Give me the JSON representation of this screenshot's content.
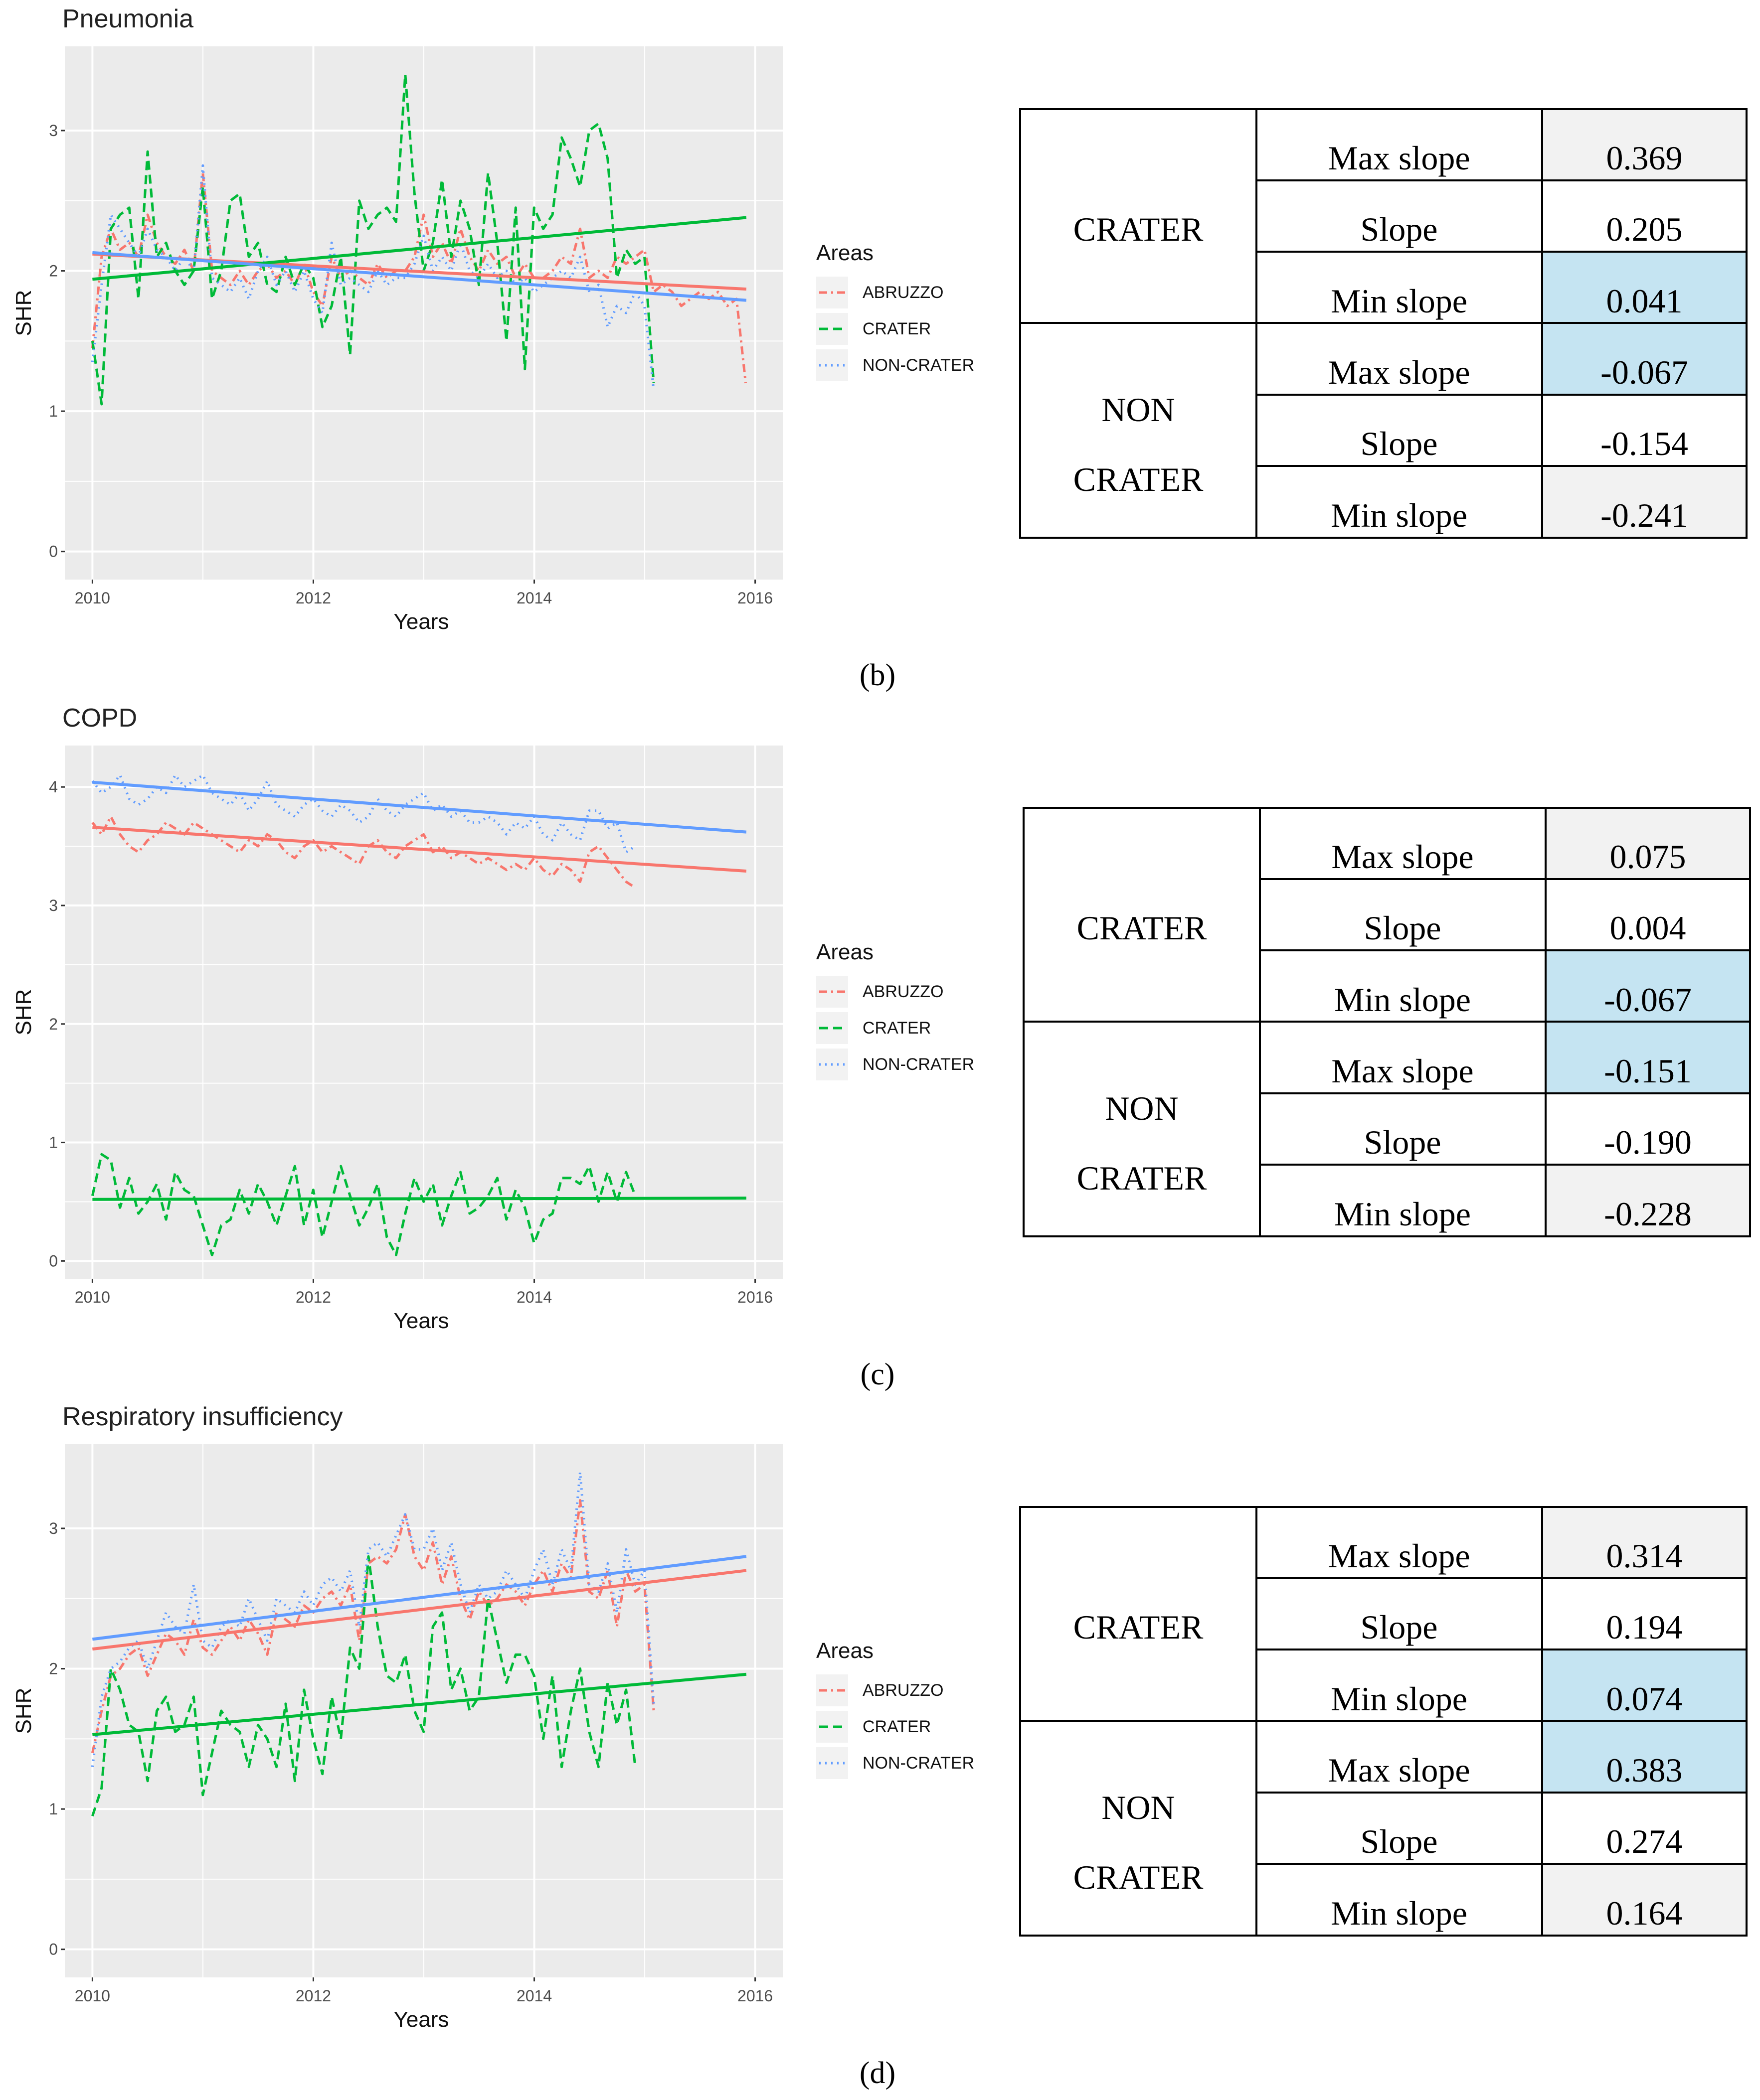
{
  "colors": {
    "panel_bg": "#ebebeb",
    "grid": "#ffffff",
    "abruzzo": "#f8766d",
    "crater": "#00ba38",
    "non_crater": "#619cff",
    "cell_gray": "#f2f2f2",
    "cell_blue": "#c5e4f2"
  },
  "legend": {
    "title": "Areas",
    "entries": [
      {
        "label": "ABRUZZO",
        "color_key": "abruzzo",
        "style": "dashdot"
      },
      {
        "label": "CRATER",
        "color_key": "crater",
        "style": "dashed"
      },
      {
        "label": "NON-CRATER",
        "color_key": "non_crater",
        "style": "dotted"
      }
    ]
  },
  "panels": [
    {
      "caption": "(b)",
      "table": {
        "group1": "CRATER",
        "group2_line1": "NON",
        "group2_line2": "CRATER",
        "rows": [
          {
            "label": "Max slope",
            "value": "0.369",
            "shade": "gray"
          },
          {
            "label": "Slope",
            "value": "0.205",
            "shade": "none"
          },
          {
            "label": "Min slope",
            "value": "0.041",
            "shade": "blue"
          },
          {
            "label": "Max slope",
            "value": "-0.067",
            "shade": "blue"
          },
          {
            "label": "Slope",
            "value": "-0.154",
            "shade": "none"
          },
          {
            "label": "Min slope",
            "value": "-0.241",
            "shade": "gray"
          }
        ]
      }
    },
    {
      "caption": "(c)",
      "table": {
        "group1": "CRATER",
        "group2_line1": "NON",
        "group2_line2": "CRATER",
        "rows": [
          {
            "label": "Max slope",
            "value": "0.075",
            "shade": "gray"
          },
          {
            "label": "Slope",
            "value": "0.004",
            "shade": "none"
          },
          {
            "label": "Min slope",
            "value": "-0.067",
            "shade": "blue"
          },
          {
            "label": "Max slope",
            "value": "-0.151",
            "shade": "blue"
          },
          {
            "label": "Slope",
            "value": "-0.190",
            "shade": "none"
          },
          {
            "label": "Min slope",
            "value": "-0.228",
            "shade": "gray"
          }
        ]
      }
    },
    {
      "caption": "(d)",
      "table": {
        "group1": "CRATER",
        "group2_line1": "NON",
        "group2_line2": "CRATER",
        "rows": [
          {
            "label": "Max slope",
            "value": "0.314",
            "shade": "gray"
          },
          {
            "label": "Slope",
            "value": "0.194",
            "shade": "none"
          },
          {
            "label": "Min slope",
            "value": "0.074",
            "shade": "blue"
          },
          {
            "label": "Max slope",
            "value": "0.383",
            "shade": "blue"
          },
          {
            "label": "Slope",
            "value": "0.274",
            "shade": "none"
          },
          {
            "label": "Min slope",
            "value": "0.164",
            "shade": "gray"
          }
        ]
      }
    }
  ],
  "chart_data": [
    {
      "type": "line",
      "title": "Pneumonia",
      "xlabel": "Years",
      "ylabel": "SHR",
      "xlim": [
        2009.75,
        2016.25
      ],
      "ylim": [
        -0.2,
        3.6
      ],
      "xticks": [
        2010,
        2012,
        2014,
        2016
      ],
      "yticks": [
        0,
        1,
        2,
        3
      ],
      "x_start": 2010,
      "x_step": 0.0833,
      "grid": true,
      "series": [
        {
          "name": "ABRUZZO",
          "color_key": "abruzzo",
          "style": "dashdot",
          "values": [
            1.45,
            2.1,
            2.3,
            2.15,
            2.2,
            2.1,
            2.4,
            2.2,
            2.1,
            2.05,
            2.15,
            2.0,
            2.7,
            2.0,
            1.95,
            1.9,
            2.0,
            1.9,
            2.0,
            2.05,
            1.95,
            2.0,
            1.9,
            2.05,
            1.85,
            1.75,
            2.1,
            1.95,
            2.0,
            1.95,
            1.9,
            2.05,
            1.95,
            2.0,
            2.0,
            2.1,
            2.4,
            2.1,
            2.2,
            2.05,
            2.3,
            2.1,
            2.0,
            2.15,
            2.05,
            2.1,
            1.95,
            2.05,
            1.95,
            1.95,
            2.0,
            2.1,
            2.05,
            2.3,
            1.95,
            2.0,
            1.95,
            2.1,
            2.05,
            2.1,
            2.15,
            1.85,
            1.9,
            1.85,
            1.75,
            1.8,
            1.85,
            1.8,
            1.85,
            1.75,
            1.8,
            1.2
          ]
        },
        {
          "name": "CRATER",
          "color_key": "crater",
          "style": "dashed",
          "values": [
            1.5,
            1.05,
            2.3,
            2.4,
            2.45,
            1.8,
            2.85,
            2.1,
            2.2,
            2.0,
            1.9,
            2.0,
            2.6,
            1.8,
            2.0,
            2.5,
            2.55,
            2.1,
            2.2,
            1.9,
            1.85,
            2.1,
            1.9,
            2.05,
            1.95,
            1.6,
            1.75,
            2.1,
            1.4,
            2.5,
            2.3,
            2.4,
            2.45,
            2.35,
            3.4,
            2.55,
            2.0,
            2.2,
            2.65,
            2.1,
            2.5,
            2.3,
            1.9,
            2.7,
            2.2,
            1.5,
            2.45,
            1.3,
            2.45,
            2.3,
            2.4,
            2.95,
            2.8,
            2.6,
            3.0,
            3.05,
            2.8,
            1.95,
            2.15,
            2.05,
            2.1,
            1.2
          ]
        },
        {
          "name": "NON-CRATER",
          "color_key": "non_crater",
          "style": "dotted",
          "values": [
            1.35,
            1.9,
            2.4,
            2.3,
            2.2,
            2.1,
            2.3,
            2.15,
            2.1,
            2.0,
            2.1,
            2.0,
            2.75,
            1.95,
            1.9,
            1.85,
            1.95,
            1.8,
            2.0,
            2.1,
            1.9,
            2.0,
            1.85,
            2.0,
            1.8,
            1.7,
            2.2,
            1.9,
            1.95,
            1.9,
            1.85,
            2.0,
            1.9,
            1.95,
            1.95,
            2.05,
            2.25,
            2.0,
            2.1,
            2.0,
            2.2,
            2.0,
            1.95,
            2.05,
            1.95,
            2.0,
            1.9,
            1.95,
            1.85,
            1.9,
            1.95,
            2.0,
            1.95,
            2.1,
            1.85,
            1.9,
            1.6,
            1.75,
            1.7,
            1.85,
            1.75,
            1.15
          ]
        }
      ],
      "trends": [
        {
          "name": "ABRUZZO",
          "color_key": "abruzzo",
          "x": [
            2010,
            2015.92
          ],
          "y": [
            2.12,
            1.87
          ]
        },
        {
          "name": "CRATER",
          "color_key": "crater",
          "x": [
            2010,
            2015.92
          ],
          "y": [
            1.94,
            2.38
          ]
        },
        {
          "name": "NON-CRATER",
          "color_key": "non_crater",
          "x": [
            2010,
            2015.92
          ],
          "y": [
            2.13,
            1.79
          ]
        }
      ]
    },
    {
      "type": "line",
      "title": "COPD",
      "xlabel": "Years",
      "ylabel": "SHR",
      "xlim": [
        2009.75,
        2016.25
      ],
      "ylim": [
        -0.15,
        4.35
      ],
      "xticks": [
        2010,
        2012,
        2014,
        2016
      ],
      "yticks": [
        0,
        1,
        2,
        3,
        4
      ],
      "x_start": 2010,
      "x_step": 0.0833,
      "grid": true,
      "series": [
        {
          "name": "ABRUZZO",
          "color_key": "abruzzo",
          "style": "dashdot",
          "values": [
            3.7,
            3.6,
            3.75,
            3.6,
            3.5,
            3.45,
            3.55,
            3.6,
            3.7,
            3.65,
            3.6,
            3.7,
            3.65,
            3.6,
            3.55,
            3.5,
            3.45,
            3.55,
            3.5,
            3.6,
            3.55,
            3.45,
            3.4,
            3.5,
            3.55,
            3.45,
            3.5,
            3.45,
            3.4,
            3.35,
            3.5,
            3.55,
            3.45,
            3.4,
            3.5,
            3.55,
            3.6,
            3.45,
            3.5,
            3.4,
            3.45,
            3.4,
            3.35,
            3.4,
            3.35,
            3.3,
            3.35,
            3.3,
            3.4,
            3.3,
            3.25,
            3.35,
            3.3,
            3.2,
            3.45,
            3.5,
            3.4,
            3.3,
            3.2,
            3.15
          ]
        },
        {
          "name": "CRATER",
          "color_key": "crater",
          "style": "dashed",
          "values": [
            0.55,
            0.9,
            0.85,
            0.45,
            0.7,
            0.4,
            0.5,
            0.65,
            0.35,
            0.75,
            0.6,
            0.55,
            0.3,
            0.05,
            0.3,
            0.35,
            0.6,
            0.4,
            0.65,
            0.5,
            0.3,
            0.55,
            0.8,
            0.3,
            0.6,
            0.2,
            0.5,
            0.8,
            0.55,
            0.3,
            0.45,
            0.65,
            0.2,
            0.05,
            0.4,
            0.7,
            0.5,
            0.65,
            0.3,
            0.55,
            0.75,
            0.4,
            0.45,
            0.55,
            0.7,
            0.35,
            0.6,
            0.45,
            0.15,
            0.35,
            0.4,
            0.7,
            0.7,
            0.65,
            0.8,
            0.5,
            0.75,
            0.5,
            0.75,
            0.55
          ]
        },
        {
          "name": "NON-CRATER",
          "color_key": "non_crater",
          "style": "dotted",
          "values": [
            4.05,
            3.95,
            4.0,
            4.1,
            3.9,
            3.85,
            3.9,
            4.0,
            3.95,
            4.1,
            4.0,
            4.05,
            4.1,
            3.95,
            3.9,
            3.85,
            3.95,
            3.8,
            3.9,
            4.05,
            3.85,
            3.8,
            3.75,
            3.85,
            3.9,
            3.8,
            3.75,
            3.85,
            3.8,
            3.7,
            3.75,
            3.9,
            3.8,
            3.75,
            3.85,
            3.9,
            3.95,
            3.8,
            3.85,
            3.75,
            3.8,
            3.7,
            3.7,
            3.75,
            3.7,
            3.6,
            3.7,
            3.65,
            3.75,
            3.6,
            3.55,
            3.7,
            3.6,
            3.55,
            3.8,
            3.8,
            3.65,
            3.7,
            3.45,
            3.5
          ]
        }
      ],
      "trends": [
        {
          "name": "ABRUZZO",
          "color_key": "abruzzo",
          "x": [
            2010,
            2015.92
          ],
          "y": [
            3.66,
            3.29
          ]
        },
        {
          "name": "CRATER",
          "color_key": "crater",
          "x": [
            2010,
            2015.92
          ],
          "y": [
            0.52,
            0.53
          ]
        },
        {
          "name": "NON-CRATER",
          "color_key": "non_crater",
          "x": [
            2010,
            2015.92
          ],
          "y": [
            4.04,
            3.62
          ]
        }
      ]
    },
    {
      "type": "line",
      "title": "Respiratory insufficiency",
      "xlabel": "Years",
      "ylabel": "SHR",
      "xlim": [
        2009.75,
        2016.25
      ],
      "ylim": [
        -0.2,
        3.6
      ],
      "xticks": [
        2010,
        2012,
        2014,
        2016
      ],
      "yticks": [
        0,
        1,
        2,
        3
      ],
      "x_start": 2010,
      "x_step": 0.0833,
      "grid": true,
      "series": [
        {
          "name": "ABRUZZO",
          "color_key": "abruzzo",
          "style": "dashdot",
          "values": [
            1.4,
            1.7,
            1.95,
            2.0,
            2.1,
            2.15,
            1.95,
            2.1,
            2.25,
            2.2,
            2.1,
            2.35,
            2.15,
            2.1,
            2.2,
            2.3,
            2.2,
            2.35,
            2.25,
            2.1,
            2.4,
            2.35,
            2.3,
            2.45,
            2.4,
            2.5,
            2.55,
            2.45,
            2.6,
            2.2,
            2.75,
            2.8,
            2.75,
            2.85,
            3.1,
            2.8,
            2.7,
            2.9,
            2.6,
            2.8,
            2.5,
            2.35,
            2.55,
            2.45,
            2.5,
            2.6,
            2.55,
            2.45,
            2.6,
            2.7,
            2.55,
            2.75,
            2.65,
            3.2,
            2.55,
            2.5,
            2.7,
            2.3,
            2.7,
            2.55,
            2.6,
            1.7
          ]
        },
        {
          "name": "CRATER",
          "color_key": "crater",
          "style": "dashed",
          "values": [
            0.95,
            1.15,
            2.0,
            1.85,
            1.6,
            1.55,
            1.2,
            1.7,
            1.8,
            1.55,
            1.6,
            1.8,
            1.1,
            1.4,
            1.7,
            1.6,
            1.55,
            1.3,
            1.6,
            1.5,
            1.3,
            1.75,
            1.2,
            1.85,
            1.5,
            1.25,
            1.8,
            1.5,
            2.15,
            2.0,
            2.8,
            2.3,
            1.95,
            1.9,
            2.1,
            1.7,
            1.55,
            2.3,
            2.4,
            1.85,
            2.0,
            1.7,
            1.8,
            2.5,
            2.2,
            1.9,
            2.1,
            2.1,
            1.95,
            1.5,
            1.95,
            1.3,
            1.7,
            2.0,
            1.55,
            1.3,
            1.9,
            1.6,
            1.85,
            1.3
          ]
        },
        {
          "name": "NON-CRATER",
          "color_key": "non_crater",
          "style": "dotted",
          "values": [
            1.3,
            1.8,
            2.0,
            2.05,
            2.15,
            2.2,
            2.0,
            2.2,
            2.4,
            2.3,
            2.25,
            2.6,
            2.2,
            2.15,
            2.3,
            2.35,
            2.3,
            2.5,
            2.35,
            2.2,
            2.5,
            2.45,
            2.4,
            2.55,
            2.45,
            2.6,
            2.65,
            2.55,
            2.7,
            2.3,
            2.85,
            2.9,
            2.8,
            2.95,
            3.1,
            2.85,
            2.85,
            3.0,
            2.7,
            2.9,
            2.6,
            2.4,
            2.6,
            2.5,
            2.55,
            2.7,
            2.6,
            2.5,
            2.7,
            2.85,
            2.6,
            2.85,
            2.7,
            3.4,
            2.6,
            2.55,
            2.75,
            2.4,
            2.85,
            2.6,
            2.7,
            1.75
          ]
        }
      ],
      "trends": [
        {
          "name": "ABRUZZO",
          "color_key": "abruzzo",
          "x": [
            2010,
            2015.92
          ],
          "y": [
            2.14,
            2.7
          ]
        },
        {
          "name": "CRATER",
          "color_key": "crater",
          "x": [
            2010,
            2015.92
          ],
          "y": [
            1.53,
            1.96
          ]
        },
        {
          "name": "NON-CRATER",
          "color_key": "non_crater",
          "x": [
            2010,
            2015.92
          ],
          "y": [
            2.21,
            2.8
          ]
        }
      ]
    }
  ]
}
